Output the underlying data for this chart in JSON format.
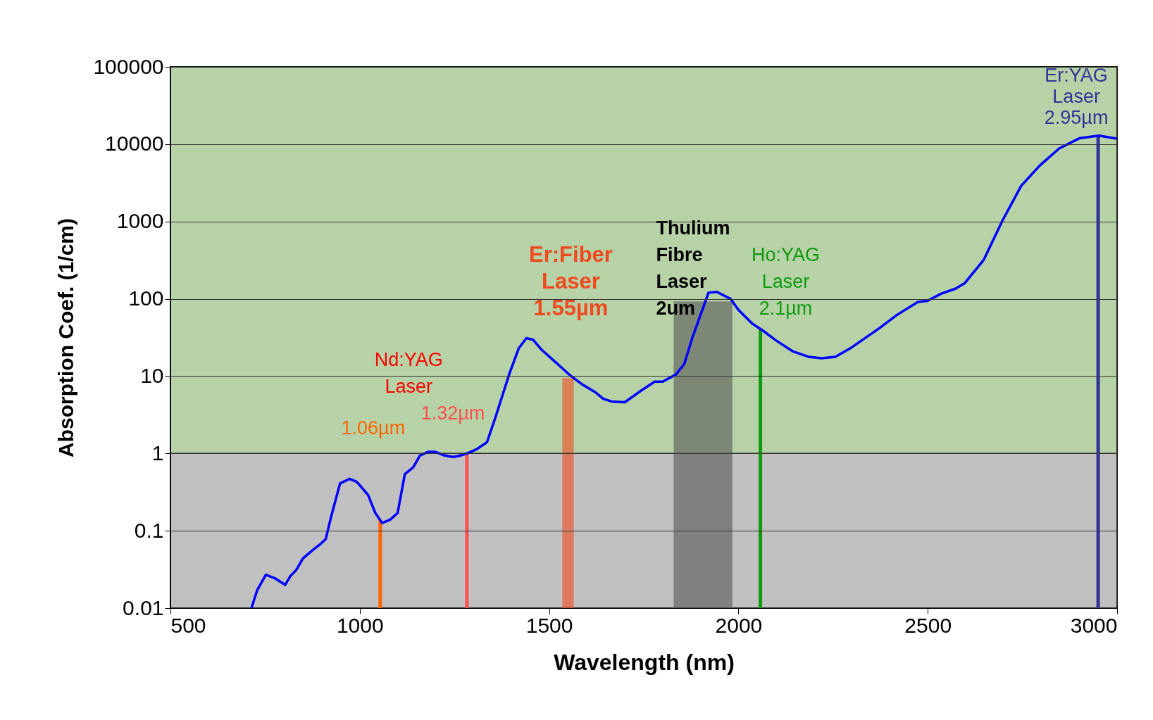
{
  "chart_data": {
    "type": "line",
    "xlabel": "Wavelength (nm)",
    "ylabel": "Absorption Coef. (1/cm)",
    "xlim": [
      500,
      3000
    ],
    "xticks": [
      500,
      1000,
      1500,
      2000,
      2500,
      3000
    ],
    "ylim": [
      0.01,
      100000
    ],
    "yticks": [
      0.01,
      0.1,
      1,
      10,
      100,
      1000,
      10000,
      100000
    ],
    "log": "y",
    "grid": "y",
    "series": [
      {
        "color": "#0000ff",
        "x": [
          714,
          729,
          752,
          778,
          803,
          817,
          832,
          850,
          875,
          894,
          910,
          924,
          948,
          973,
          992,
          1022,
          1041,
          1059,
          1081,
          1100,
          1119,
          1141,
          1159,
          1181,
          1199,
          1221,
          1246,
          1262,
          1283,
          1308,
          1336,
          1358,
          1395,
          1420,
          1440,
          1458,
          1480,
          1522,
          1558,
          1586,
          1622,
          1643,
          1665,
          1700,
          1743,
          1779,
          1800,
          1835,
          1857,
          1878,
          1921,
          1943,
          1979,
          2000,
          2036,
          2064,
          2099,
          2143,
          2185,
          2220,
          2256,
          2299,
          2370,
          2419,
          2474,
          2499,
          2536,
          2573,
          2598,
          2648,
          2697,
          2747,
          2796,
          2847,
          2902,
          2952,
          3000
        ],
        "values": [
          0.01,
          0.017,
          0.027,
          0.024,
          0.02,
          0.026,
          0.031,
          0.044,
          0.056,
          0.066,
          0.078,
          0.15,
          0.41,
          0.47,
          0.43,
          0.29,
          0.17,
          0.126,
          0.14,
          0.17,
          0.54,
          0.66,
          0.94,
          1.05,
          1.05,
          0.95,
          0.9,
          0.93,
          1.0,
          1.13,
          1.4,
          2.9,
          10.7,
          23,
          31,
          29.5,
          22,
          14.4,
          10,
          7.9,
          6.2,
          5.1,
          4.7,
          4.6,
          6.5,
          8.5,
          8.5,
          10.5,
          14.4,
          31,
          120,
          123,
          100,
          72,
          48,
          39,
          29,
          21,
          17.8,
          17,
          17.8,
          23.5,
          41,
          62,
          91,
          94,
          117,
          135,
          160,
          320,
          1020,
          2900,
          5300,
          8800,
          12000,
          12900,
          11800
        ]
      }
    ],
    "bands": [
      {
        "axis": "y",
        "from": 0.01,
        "to": 1,
        "color": "#c0c0c0"
      },
      {
        "axis": "y",
        "from": 1,
        "to": 100000,
        "color": "#b6d2a6"
      },
      {
        "axis": "x",
        "from": 1535,
        "to": 1565,
        "color": "#f04a20",
        "label": "Er:Fiber\nLaser\n1.55µm"
      },
      {
        "axis": "x",
        "from": 1829,
        "to": 1984,
        "color": "#555555",
        "label": "Thulium\nFibre\nLaser\n2um"
      }
    ],
    "ref_lines": [
      {
        "axis": "x",
        "value": 1054,
        "color": "#ff6600",
        "label": "1.06µm"
      },
      {
        "axis": "x",
        "value": 1283,
        "color": "#ff5050",
        "label": "1.32µm"
      },
      {
        "axis": "x",
        "value": 2058,
        "color": "#109a10",
        "label": "Ho:YAG\nLaser\n2.1µm"
      },
      {
        "axis": "x",
        "value": 2950,
        "color": "#333399",
        "label": "Er:YAG\nLaser\n2.95µm"
      }
    ],
    "annotations": [
      "Nd:YAG\nLaser"
    ]
  }
}
